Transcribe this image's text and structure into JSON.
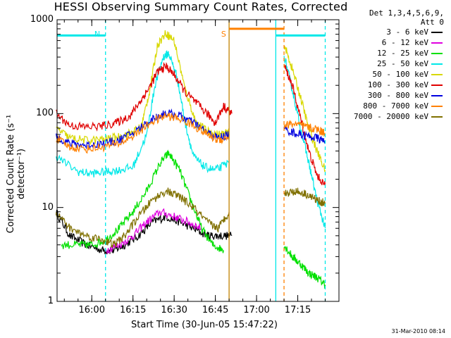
{
  "title": "HESSI Observing Summary Count Rates, Corrected",
  "xlabel": "Start Time (30-Jun-05 15:47:22)",
  "ylabel": "Corrected Count Rate (s⁻¹ detector⁻¹)",
  "footer_date": "31-Mar-2010 08:14",
  "legend": {
    "header_line1": "Det 1,3,4,5,6,9,",
    "header_line2": "Att 0",
    "entries": [
      {
        "label": "3 - 6 keV",
        "color": "#000000"
      },
      {
        "label": "6 - 12 keV",
        "color": "#e000e0"
      },
      {
        "label": "12 - 25 keV",
        "color": "#00e000"
      },
      {
        "label": "25 - 50 keV",
        "color": "#00e8e8"
      },
      {
        "label": "50 - 100 keV",
        "color": "#d8d800"
      },
      {
        "label": "100 - 300 keV",
        "color": "#e00000"
      },
      {
        "label": "300 - 800 keV",
        "color": "#0000e0"
      },
      {
        "label": "800 - 7000 keV",
        "color": "#ff8000"
      },
      {
        "label": "7000 - 20000 keV",
        "color": "#807000"
      }
    ]
  },
  "chart_data": {
    "type": "line",
    "title": "HESSI Observing Summary Count Rates, Corrected",
    "xlabel": "Start Time (30-Jun-05 15:47:22)",
    "ylabel": "Corrected Count Rate (s⁻¹ detector⁻¹)",
    "xlim": [
      "15:47:22",
      "17:30"
    ],
    "ylim": [
      1,
      1000
    ],
    "yscale": "log",
    "x_ticks": [
      "16:00",
      "16:15",
      "16:30",
      "16:45",
      "17:00",
      "17:15"
    ],
    "y_ticks": [
      {
        "value": 1,
        "label": "1"
      },
      {
        "value": 10,
        "label": "10"
      },
      {
        "value": 100,
        "label": "100"
      },
      {
        "value": 1000,
        "label": "1000"
      }
    ],
    "grid": false,
    "legend_position": "right",
    "annotations": [
      {
        "text": "N",
        "time": "16:02",
        "color": "#00e8e8"
      },
      {
        "text": "S",
        "time": "16:48",
        "color": "#ff8000"
      }
    ],
    "vertical_lines": [
      {
        "time": "16:05",
        "color": "#00e8e8",
        "style": "dashed"
      },
      {
        "time": "16:50",
        "color": "#c08000",
        "style": "solid"
      },
      {
        "time": "17:07",
        "color": "#00e8e8",
        "style": "solid"
      },
      {
        "time": "17:10",
        "color": "#ff8000",
        "style": "dashed"
      },
      {
        "time": "17:25",
        "color": "#00e8e8",
        "style": "dashed"
      }
    ],
    "horizontal_segments": [
      {
        "start": "15:47:22",
        "end": "16:05",
        "value": 680,
        "color": "#00e8e8"
      },
      {
        "start": "17:07",
        "end": "17:25",
        "value": 680,
        "color": "#00e8e8"
      },
      {
        "start": "16:50",
        "end": "17:10",
        "value": 800,
        "color": "#ff8000"
      }
    ],
    "series": [
      {
        "name": "3 - 6 keV",
        "color": "#000000",
        "segments": [
          {
            "x": [
              "15:47",
              "15:52",
              "15:58",
              "16:04",
              "16:08",
              "16:12",
              "16:17",
              "16:22",
              "16:27",
              "16:32",
              "16:37",
              "16:42",
              "16:46",
              "16:51"
            ],
            "y": [
              9,
              5,
              4,
              3.5,
              3.5,
              4,
              5,
              7,
              8,
              7,
              6,
              5,
              5,
              5
            ]
          }
        ]
      },
      {
        "name": "6 - 12 keV",
        "color": "#e000e0",
        "segments": [
          {
            "x": [
              "16:05",
              "16:10",
              "16:15",
              "16:20",
              "16:25",
              "16:30",
              "16:35",
              "16:40"
            ],
            "y": [
              3.5,
              4,
              5,
              7,
              9,
              8,
              7,
              6
            ]
          }
        ]
      },
      {
        "name": "12 - 25 keV",
        "color": "#00e000",
        "segments": [
          {
            "x": [
              "15:49",
              "15:55",
              "16:00",
              "16:05",
              "16:10",
              "16:15",
              "16:20",
              "16:25",
              "16:28",
              "16:32",
              "16:36",
              "16:40",
              "16:44",
              "16:48"
            ],
            "y": [
              4,
              4,
              4,
              4.5,
              6,
              9,
              15,
              30,
              38,
              25,
              12,
              6,
              4,
              3.5
            ]
          },
          {
            "x": [
              "17:10",
              "17:13",
              "17:16",
              "17:19",
              "17:22",
              "17:25"
            ],
            "y": [
              4,
              3,
              2.5,
              2,
              1.8,
              1.5
            ]
          }
        ]
      },
      {
        "name": "25 - 50 keV",
        "color": "#00e8e8",
        "segments": [
          {
            "x": [
              "15:47",
              "15:55",
              "16:00",
              "16:05",
              "16:10",
              "16:15",
              "16:20",
              "16:23",
              "16:26",
              "16:28",
              "16:31",
              "16:34",
              "16:37",
              "16:41",
              "16:45",
              "16:50"
            ],
            "y": [
              35,
              24,
              23,
              24,
              25,
              27,
              60,
              200,
              400,
              440,
              250,
              80,
              35,
              27,
              25,
              30
            ]
          },
          {
            "x": [
              "17:10",
              "17:13",
              "17:16",
              "17:19",
              "17:22",
              "17:25"
            ],
            "y": [
              420,
              180,
              70,
              30,
              12,
              6
            ]
          }
        ]
      },
      {
        "name": "50 - 100 keV",
        "color": "#d8d800",
        "segments": [
          {
            "x": [
              "15:47",
              "15:52",
              "15:58",
              "16:04",
              "16:09",
              "16:14",
              "16:18",
              "16:21",
              "16:24",
              "16:27",
              "16:30",
              "16:34",
              "16:38",
              "16:42",
              "16:46",
              "16:50"
            ],
            "y": [
              70,
              55,
              52,
              53,
              56,
              62,
              72,
              170,
              550,
              720,
              600,
              180,
              80,
              65,
              60,
              62
            ]
          },
          {
            "x": [
              "17:10",
              "17:13",
              "17:16",
              "17:19",
              "17:22",
              "17:25"
            ],
            "y": [
              550,
              300,
              150,
              70,
              40,
              25
            ]
          }
        ]
      },
      {
        "name": "100 - 300 keV",
        "color": "#e00000",
        "segments": [
          {
            "x": [
              "15:47",
              "15:52",
              "15:58",
              "16:04",
              "16:09",
              "16:14",
              "16:18",
              "16:21",
              "16:24",
              "16:27",
              "16:30",
              "16:34",
              "16:38",
              "16:42",
              "16:45",
              "16:48",
              "16:51"
            ],
            "y": [
              100,
              75,
              72,
              74,
              80,
              95,
              140,
              190,
              280,
              320,
              260,
              170,
              130,
              100,
              80,
              120,
              100
            ]
          },
          {
            "x": [
              "17:10",
              "17:13",
              "17:16",
              "17:19",
              "17:22",
              "17:25"
            ],
            "y": [
              330,
              200,
              90,
              40,
              22,
              17
            ]
          }
        ]
      },
      {
        "name": "300 - 800 keV",
        "color": "#0000e0",
        "segments": [
          {
            "x": [
              "15:47",
              "15:52",
              "15:58",
              "16:04",
              "16:10",
              "16:16",
              "16:22",
              "16:27",
              "16:32",
              "16:37",
              "16:42",
              "16:46",
              "16:50"
            ],
            "y": [
              58,
              48,
              46,
              48,
              52,
              65,
              88,
              102,
              95,
              80,
              63,
              55,
              60
            ]
          },
          {
            "x": [
              "17:10",
              "17:14",
              "17:18",
              "17:22",
              "17:25"
            ],
            "y": [
              68,
              62,
              58,
              55,
              50
            ]
          }
        ]
      },
      {
        "name": "800 - 7000 keV",
        "color": "#ff8000",
        "segments": [
          {
            "x": [
              "15:47",
              "15:52",
              "15:58",
              "16:04",
              "16:10",
              "16:16",
              "16:22",
              "16:27",
              "16:32",
              "16:37",
              "16:42",
              "16:46",
              "16:50"
            ],
            "y": [
              55,
              44,
              42,
              44,
              48,
              60,
              82,
              95,
              88,
              75,
              60,
              52,
              57
            ]
          },
          {
            "x": [
              "17:10",
              "17:14",
              "17:18",
              "17:22",
              "17:25"
            ],
            "y": [
              75,
              78,
              72,
              68,
              62
            ]
          }
        ]
      },
      {
        "name": "7000 - 20000 keV",
        "color": "#807000",
        "segments": [
          {
            "x": [
              "15:47",
              "15:52",
              "15:58",
              "16:04",
              "16:08",
              "16:12",
              "16:17",
              "16:22",
              "16:27",
              "16:32",
              "16:37",
              "16:42",
              "16:46",
              "16:50"
            ],
            "y": [
              9,
              6,
              5,
              4.5,
              4,
              5,
              8,
              12,
              15,
              13,
              10,
              7,
              6,
              9
            ]
          },
          {
            "x": [
              "17:10",
              "17:14",
              "17:18",
              "17:22",
              "17:25"
            ],
            "y": [
              14,
              15,
              14,
              12,
              11
            ]
          }
        ]
      }
    ]
  }
}
